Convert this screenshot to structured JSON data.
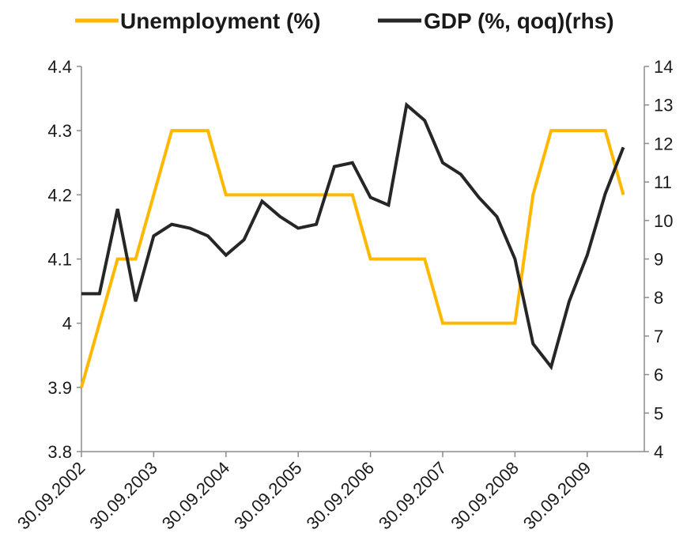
{
  "chart_data": {
    "type": "line",
    "legend_position": "top",
    "grid": false,
    "x": [
      "30.09.2002",
      "31.12.2002",
      "31.03.2003",
      "30.06.2003",
      "30.09.2003",
      "31.12.2003",
      "31.03.2004",
      "30.06.2004",
      "30.09.2004",
      "31.12.2004",
      "31.03.2005",
      "30.06.2005",
      "30.09.2005",
      "31.12.2005",
      "31.03.2006",
      "30.06.2006",
      "30.09.2006",
      "31.12.2006",
      "31.03.2007",
      "30.06.2007",
      "30.09.2007",
      "31.12.2007",
      "31.03.2008",
      "30.06.2008",
      "30.09.2008",
      "31.12.2008",
      "31.03.2009",
      "30.06.2009",
      "30.09.2009",
      "31.12.2009",
      "31.03.2010"
    ],
    "x_tick_labels": [
      "30.09.2002",
      "30.09.2003",
      "30.09.2004",
      "30.09.2005",
      "30.09.2006",
      "30.09.2007",
      "30.09.2008",
      "30.09.2009"
    ],
    "y_left": {
      "ylim": [
        3.8,
        4.4
      ],
      "ticks": [
        "3.8",
        "3.9",
        "4",
        "4.1",
        "4.2",
        "4.3",
        "4.4"
      ]
    },
    "y_right": {
      "ylim": [
        4,
        14
      ],
      "ticks": [
        "4",
        "5",
        "6",
        "7",
        "8",
        "9",
        "10",
        "11",
        "12",
        "13",
        "14"
      ]
    },
    "series": [
      {
        "name": "Unemployment (%)",
        "axis": "left",
        "color": "#FFB800",
        "values": [
          3.9,
          4.0,
          4.1,
          4.1,
          4.2,
          4.3,
          4.3,
          4.3,
          4.2,
          4.2,
          4.2,
          4.2,
          4.2,
          4.2,
          4.2,
          4.2,
          4.1,
          4.1,
          4.1,
          4.1,
          4.0,
          4.0,
          4.0,
          4.0,
          4.0,
          4.2,
          4.3,
          4.3,
          4.3,
          4.3,
          4.2
        ]
      },
      {
        "name": "GDP (%, qoq)(rhs)",
        "axis": "right",
        "color": "#262626",
        "values": [
          8.1,
          8.1,
          10.3,
          7.9,
          9.6,
          9.9,
          9.8,
          9.6,
          9.1,
          9.5,
          10.5,
          10.1,
          9.8,
          9.9,
          11.4,
          11.5,
          10.6,
          10.4,
          13.0,
          12.6,
          11.5,
          11.2,
          10.6,
          10.1,
          9.0,
          6.8,
          6.2,
          7.9,
          9.1,
          10.7,
          11.9
        ]
      }
    ]
  }
}
